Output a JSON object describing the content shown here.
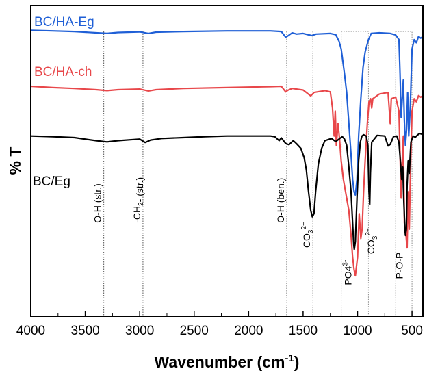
{
  "chart_data": {
    "type": "line",
    "title": "",
    "xlabel": "Wavenumber (cm",
    "xlabel_sup": "-1",
    "xlabel_close": ")",
    "ylabel": "% T",
    "xlim": [
      4000,
      400
    ],
    "ylim": [
      0,
      100
    ],
    "x_reversed": true,
    "grid": false,
    "x_ticks": [
      4000,
      3500,
      3000,
      2500,
      2000,
      1500,
      1000,
      500
    ],
    "series": [
      {
        "name": "BC/HA-Eg",
        "color": "#1f5fd6",
        "points": [
          [
            4000,
            92
          ],
          [
            3800,
            91.8
          ],
          [
            3600,
            91.6
          ],
          [
            3400,
            91.2
          ],
          [
            3300,
            91.0
          ],
          [
            3200,
            91.3
          ],
          [
            3000,
            91.5
          ],
          [
            2920,
            91.0
          ],
          [
            2850,
            91.4
          ],
          [
            2600,
            91.6
          ],
          [
            2200,
            91.8
          ],
          [
            1800,
            91.8
          ],
          [
            1700,
            91.6
          ],
          [
            1660,
            89.8
          ],
          [
            1640,
            90.2
          ],
          [
            1600,
            91.2
          ],
          [
            1560,
            90.8
          ],
          [
            1500,
            91.0
          ],
          [
            1420,
            90.3
          ],
          [
            1380,
            90.8
          ],
          [
            1250,
            91.0
          ],
          [
            1200,
            90.6
          ],
          [
            1170,
            88.5
          ],
          [
            1150,
            86
          ],
          [
            1120,
            78
          ],
          [
            1100,
            72
          ],
          [
            1080,
            62
          ],
          [
            1060,
            52
          ],
          [
            1045,
            44
          ],
          [
            1032,
            40
          ],
          [
            1020,
            39
          ],
          [
            1005,
            44
          ],
          [
            990,
            58
          ],
          [
            970,
            70
          ],
          [
            950,
            80
          ],
          [
            930,
            85
          ],
          [
            900,
            89
          ],
          [
            875,
            91
          ],
          [
            800,
            91.2
          ],
          [
            700,
            91.0
          ],
          [
            650,
            90.5
          ],
          [
            620,
            89
          ],
          [
            610,
            78
          ],
          [
            600,
            64
          ],
          [
            590,
            70
          ],
          [
            580,
            76
          ],
          [
            570,
            63
          ],
          [
            560,
            55
          ],
          [
            550,
            60
          ],
          [
            540,
            72
          ],
          [
            530,
            58
          ],
          [
            515,
            68
          ],
          [
            500,
            86
          ],
          [
            480,
            89
          ],
          [
            460,
            88
          ],
          [
            440,
            90
          ],
          [
            420,
            89.5
          ],
          [
            400,
            90
          ]
        ]
      },
      {
        "name": "BC/HA-ch",
        "color": "#e8474a",
        "points": [
          [
            4000,
            74
          ],
          [
            3800,
            73.6
          ],
          [
            3600,
            73.3
          ],
          [
            3400,
            72.9
          ],
          [
            3300,
            72.6
          ],
          [
            3200,
            72.9
          ],
          [
            3000,
            73.1
          ],
          [
            2920,
            72.5
          ],
          [
            2850,
            72.9
          ],
          [
            2600,
            73.3
          ],
          [
            2200,
            73.6
          ],
          [
            1800,
            73.9
          ],
          [
            1700,
            74.0
          ],
          [
            1660,
            72.2
          ],
          [
            1640,
            72.7
          ],
          [
            1600,
            73.3
          ],
          [
            1500,
            72.8
          ],
          [
            1430,
            70.9
          ],
          [
            1400,
            72.0
          ],
          [
            1300,
            72.6
          ],
          [
            1250,
            72.2
          ],
          [
            1230,
            67
          ],
          [
            1215,
            58
          ],
          [
            1205,
            66
          ],
          [
            1195,
            55
          ],
          [
            1180,
            62
          ],
          [
            1165,
            57
          ],
          [
            1150,
            50
          ],
          [
            1130,
            44
          ],
          [
            1110,
            40
          ],
          [
            1100,
            38
          ],
          [
            1080,
            34
          ],
          [
            1060,
            26
          ],
          [
            1045,
            19
          ],
          [
            1032,
            15
          ],
          [
            1020,
            13
          ],
          [
            1010,
            16
          ],
          [
            1000,
            19
          ],
          [
            985,
            33
          ],
          [
            970,
            25
          ],
          [
            958,
            28
          ],
          [
            945,
            40
          ],
          [
            930,
            50
          ],
          [
            910,
            62
          ],
          [
            895,
            69
          ],
          [
            880,
            70
          ],
          [
            870,
            67
          ],
          [
            860,
            70
          ],
          [
            800,
            71.5
          ],
          [
            720,
            72
          ],
          [
            700,
            62
          ],
          [
            690,
            70
          ],
          [
            650,
            70.5
          ],
          [
            620,
            66
          ],
          [
            610,
            52
          ],
          [
            600,
            38
          ],
          [
            590,
            50
          ],
          [
            580,
            58
          ],
          [
            570,
            30
          ],
          [
            560,
            28
          ],
          [
            545,
            22
          ],
          [
            535,
            40
          ],
          [
            525,
            28
          ],
          [
            515,
            45
          ],
          [
            500,
            66
          ],
          [
            480,
            70
          ],
          [
            460,
            69
          ],
          [
            440,
            71
          ],
          [
            420,
            70.5
          ],
          [
            400,
            71
          ]
        ]
      },
      {
        "name": "BC/Eg",
        "color": "#000000",
        "points": [
          [
            4000,
            58
          ],
          [
            3800,
            57.8
          ],
          [
            3600,
            57.5
          ],
          [
            3400,
            56.5
          ],
          [
            3300,
            56.1
          ],
          [
            3200,
            56.5
          ],
          [
            3000,
            57.0
          ],
          [
            2950,
            55.9
          ],
          [
            2900,
            56.7
          ],
          [
            2800,
            57.2
          ],
          [
            2600,
            57.5
          ],
          [
            2400,
            57.8
          ],
          [
            2200,
            58.0
          ],
          [
            2000,
            58.0
          ],
          [
            1800,
            58.0
          ],
          [
            1760,
            57.8
          ],
          [
            1720,
            56.5
          ],
          [
            1700,
            57.4
          ],
          [
            1660,
            55.6
          ],
          [
            1630,
            55.2
          ],
          [
            1590,
            56.5
          ],
          [
            1560,
            55.5
          ],
          [
            1520,
            54.0
          ],
          [
            1490,
            51
          ],
          [
            1470,
            47
          ],
          [
            1450,
            40
          ],
          [
            1430,
            34
          ],
          [
            1415,
            32
          ],
          [
            1400,
            33
          ],
          [
            1385,
            40
          ],
          [
            1360,
            49
          ],
          [
            1330,
            54
          ],
          [
            1300,
            56.5
          ],
          [
            1240,
            57.2
          ],
          [
            1200,
            56.2
          ],
          [
            1160,
            57.3
          ],
          [
            1140,
            57.8
          ],
          [
            1120,
            57
          ],
          [
            1100,
            55
          ],
          [
            1080,
            48
          ],
          [
            1060,
            40
          ],
          [
            1045,
            30
          ],
          [
            1035,
            23
          ],
          [
            1030,
            21.5
          ],
          [
            1020,
            24
          ],
          [
            1005,
            38
          ],
          [
            990,
            50
          ],
          [
            975,
            56
          ],
          [
            960,
            58
          ],
          [
            945,
            58.4
          ],
          [
            920,
            58
          ],
          [
            905,
            55
          ],
          [
            895,
            40
          ],
          [
            888,
            36
          ],
          [
            882,
            46
          ],
          [
            870,
            56
          ],
          [
            820,
            58.2
          ],
          [
            750,
            58
          ],
          [
            720,
            54.8
          ],
          [
            700,
            55.3
          ],
          [
            670,
            57.8
          ],
          [
            640,
            58
          ],
          [
            620,
            56
          ],
          [
            605,
            49
          ],
          [
            595,
            44
          ],
          [
            585,
            48
          ],
          [
            575,
            37
          ],
          [
            565,
            28
          ],
          [
            560,
            26
          ],
          [
            552,
            28
          ],
          [
            545,
            42
          ],
          [
            535,
            50
          ],
          [
            525,
            46
          ],
          [
            510,
            56
          ],
          [
            490,
            58
          ],
          [
            470,
            57.6
          ],
          [
            450,
            58.3
          ],
          [
            430,
            58.8
          ],
          [
            410,
            58.6
          ],
          [
            400,
            59
          ]
        ]
      }
    ],
    "reference_lines": [
      3330,
      2970,
      1650,
      1410
    ],
    "shaded_boxes": [
      [
        1150,
        900
      ],
      [
        650,
        500
      ]
    ],
    "annotations": [
      {
        "text": "O-H (str.)",
        "x": 3330,
        "y": 30
      },
      {
        "text": "-CH",
        "sub": "2",
        "tail": "- (str.)",
        "x": 2970,
        "y": 30
      },
      {
        "text": "O-H (ben.)",
        "x": 1650,
        "y": 30
      },
      {
        "text": "CO",
        "sub": "3",
        "sup": "2−",
        "x": 1410,
        "y": 22
      },
      {
        "text": "PO4",
        "sup": "3-",
        "x": 1030,
        "y": 10
      },
      {
        "text": "CO",
        "sub": "3",
        "sup": "2−",
        "x": 820,
        "y": 20
      },
      {
        "text": "P-O-P",
        "x": 560,
        "y": 12
      }
    ]
  }
}
